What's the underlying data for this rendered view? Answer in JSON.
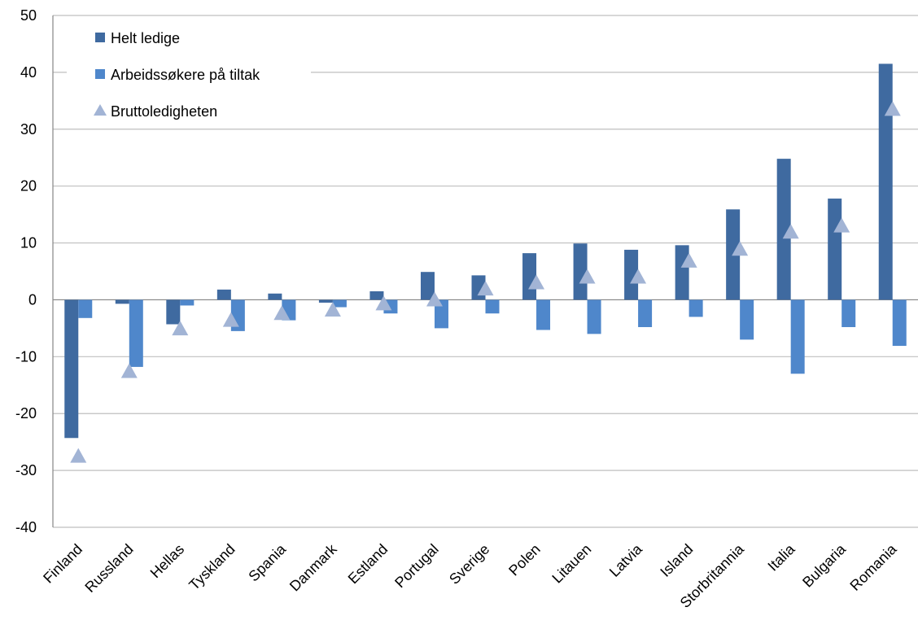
{
  "chart_data": {
    "type": "bar",
    "title": "",
    "xlabel": "",
    "ylabel": "",
    "ylim": [
      -40,
      50
    ],
    "yticks": [
      -40,
      -30,
      -20,
      -10,
      0,
      10,
      20,
      30,
      40,
      50
    ],
    "yticks_labels": [
      "-40",
      "-30",
      "-20",
      "-10",
      "0",
      "10",
      "20",
      "30",
      "40",
      "50"
    ],
    "grid": "horizontal",
    "legend_position": "top-left",
    "categories": [
      "Finland",
      "Russland",
      "Hellas",
      "Tyskland",
      "Spania",
      "Danmark",
      "Estland",
      "Portugal",
      "Sverige",
      "Polen",
      "Litauen",
      "Latvia",
      "Island",
      "Storbritannia",
      "Italia",
      "Bulgaria",
      "Romania"
    ],
    "series": [
      {
        "name": "Helt ledige",
        "kind": "bar",
        "color": "#3F6AA0",
        "values": [
          -24.3,
          -0.7,
          -4.3,
          1.8,
          1.1,
          -0.5,
          1.5,
          4.9,
          4.3,
          8.2,
          9.9,
          8.8,
          9.6,
          15.9,
          24.8,
          17.8,
          41.5
        ]
      },
      {
        "name": "Arbeidssøkere på tiltak",
        "kind": "bar",
        "color": "#4F87CB",
        "values": [
          -3.2,
          -11.8,
          -1.0,
          -5.5,
          -3.6,
          -1.3,
          -2.4,
          -5.0,
          -2.4,
          -5.3,
          -6.0,
          -4.8,
          -3.0,
          -7.0,
          -13.0,
          -4.8,
          -8.1
        ]
      },
      {
        "name": "Bruttoledigheten",
        "kind": "marker",
        "color": "#A2B4D5",
        "values": [
          -27.5,
          -12.6,
          -5.1,
          -3.6,
          -2.4,
          -1.8,
          -0.7,
          0.0,
          1.9,
          3.0,
          4.0,
          4.0,
          6.8,
          8.9,
          11.9,
          13.0,
          33.5
        ]
      }
    ]
  }
}
